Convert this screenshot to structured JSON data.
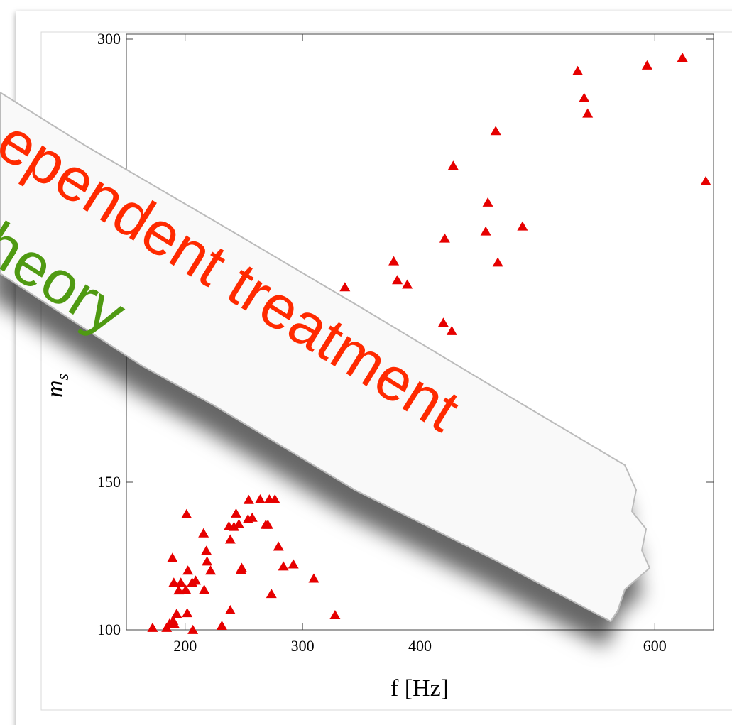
{
  "chart_data": {
    "type": "scatter",
    "xlabel": "f [Hz]",
    "ylabel": {
      "main": "m",
      "sub": "s"
    },
    "marker_color": "#e60000",
    "xlim": [
      150,
      650
    ],
    "xticks": [
      200,
      300,
      400,
      600
    ],
    "ylim": [
      100,
      300
    ],
    "yticks": [
      100,
      150,
      300
    ],
    "x": [
      623.5,
      593.4,
      534.3,
      539.8,
      542.8,
      464.5,
      643.4,
      428.3,
      457.8,
      456,
      487.3,
      466.3,
      421.1,
      377.7,
      380.7,
      389.2,
      336.1,
      419.9,
      427.1,
      431.3,
      271.7,
      276.5,
      263.9,
      254.2,
      257.2,
      253.6,
      243.4,
      245.8,
      241.6,
      237.3,
      268.7,
      270.5,
      238.5,
      279.5,
      215.7,
      218.1,
      218.7,
      221.7,
      201.2,
      189.2,
      202.4,
      206,
      209,
      196.4,
      190.4,
      194.6,
      200.6,
      216.3,
      248.2,
      247.6,
      283.7,
      292.2,
      309.6,
      273.5,
      201.8,
      238.5,
      327.7,
      192.8,
      189.8,
      186.7,
      190.9,
      172.3,
      206.6,
      231.3,
      184.3
    ],
    "values": [
      293.5,
      290.9,
      289,
      279.9,
      274.6,
      268.7,
      251.7,
      256.9,
      244.5,
      234.7,
      236.4,
      224.2,
      232.3,
      224.6,
      218.2,
      216.7,
      215.8,
      203.8,
      201,
      181.3,
      144,
      144,
      144,
      143.8,
      137.8,
      137.3,
      139.2,
      135.6,
      134.7,
      134.9,
      135.4,
      135.4,
      130.4,
      128,
      132.5,
      126.6,
      123,
      119.9,
      139,
      124.2,
      119.9,
      115.8,
      116.5,
      115.8,
      115.8,
      113.2,
      113.4,
      113.4,
      120.8,
      120.1,
      121.3,
      122,
      117.2,
      112,
      105.5,
      106.5,
      104.8,
      105.3,
      102.9,
      101.9,
      101.7,
      100.5,
      99.8,
      101.2,
      100.5
    ]
  },
  "overlay": {
    "line1": "ependent treatment",
    "line2": "heory"
  }
}
